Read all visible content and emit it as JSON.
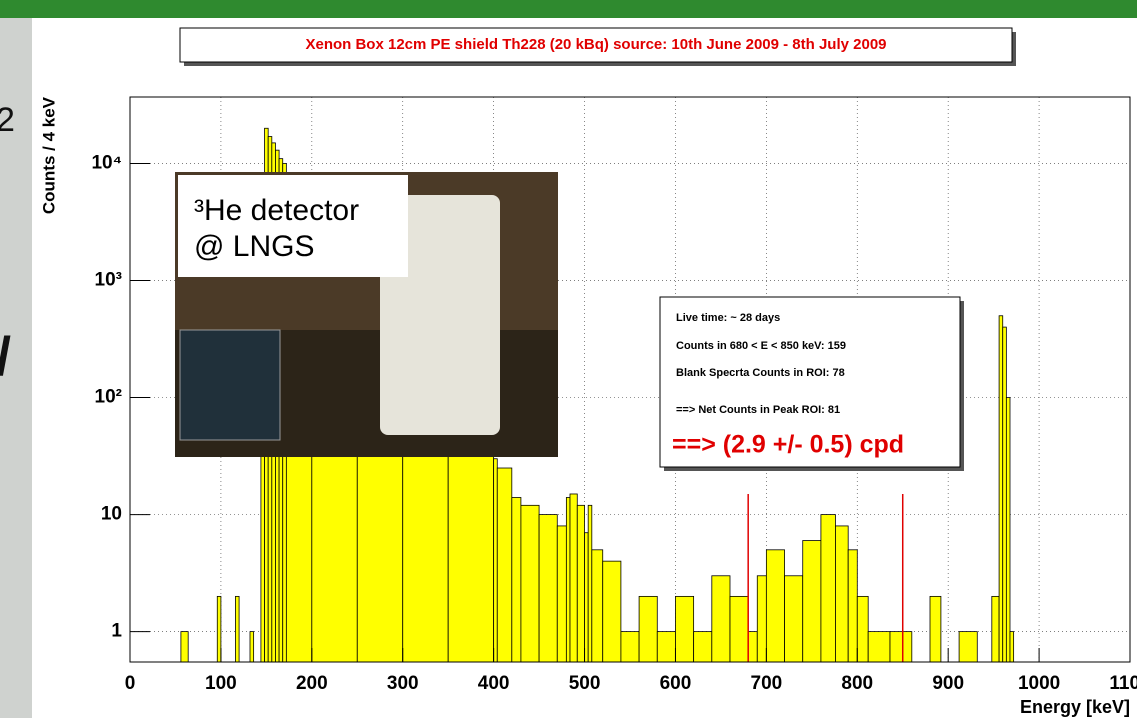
{
  "slide_fragments": [
    "2",
    "/"
  ],
  "photo_caption": [
    "³He detector",
    "@ LNGS"
  ],
  "chart_data": {
    "type": "histogram",
    "title": "Xenon Box 12cm PE shield Th228 (20 kBq) source: 10th June 2009 - 8th July 2009",
    "x_label": "Energy [keV]",
    "y_label": "Counts / 4 keV",
    "color": "#ffff00",
    "log_y": true,
    "grid": true,
    "bins": [
      56,
      64,
      96,
      100,
      116,
      120,
      132,
      136,
      144,
      148,
      152,
      156,
      160,
      164,
      168,
      172,
      200,
      250,
      300,
      350,
      400,
      404,
      420,
      430,
      450,
      470,
      480,
      484,
      492,
      500,
      504,
      508,
      520,
      540,
      560,
      580,
      600,
      620,
      640,
      660,
      680,
      690,
      700,
      720,
      740,
      760,
      776,
      790,
      800,
      812,
      836,
      860,
      880,
      892,
      912,
      932,
      948,
      956,
      960,
      964,
      968,
      972
    ],
    "values": [
      1,
      0,
      2,
      0,
      2,
      0,
      1,
      0,
      40,
      20000,
      17000,
      15000,
      13000,
      11000,
      10000,
      6000,
      2000,
      600,
      200,
      60,
      30,
      25,
      14,
      12,
      10,
      8,
      14,
      15,
      12,
      7,
      12,
      5,
      4,
      1,
      2,
      1,
      2,
      1,
      3,
      2,
      1,
      3,
      5,
      3,
      6,
      10,
      8,
      5,
      2,
      1,
      1,
      0,
      2,
      0,
      1,
      0,
      2,
      500,
      400,
      100,
      1
    ],
    "xlim": [
      0,
      1100
    ],
    "xticks": [
      0,
      100,
      200,
      300,
      400,
      500,
      600,
      700,
      800,
      900,
      1000,
      1100
    ],
    "ylim": [
      0.55,
      37000
    ],
    "yticks": [
      1,
      10,
      {
        "value": 100,
        "label": "10²"
      },
      {
        "value": 1000,
        "label": "10³"
      },
      {
        "value": 10000,
        "label": "10⁴"
      }
    ],
    "roi": {
      "x": [
        680,
        850
      ],
      "height": 15,
      "color": "#e00000"
    },
    "annotations": [
      "Live time: ~ 28 days",
      "Counts in 680 < E < 850 keV: 159",
      "Blank Specrta Counts in ROI: 78",
      "==> Net Counts in Peak ROI: 81",
      "==> (2.9 +/- 0.5) cpd"
    ]
  }
}
